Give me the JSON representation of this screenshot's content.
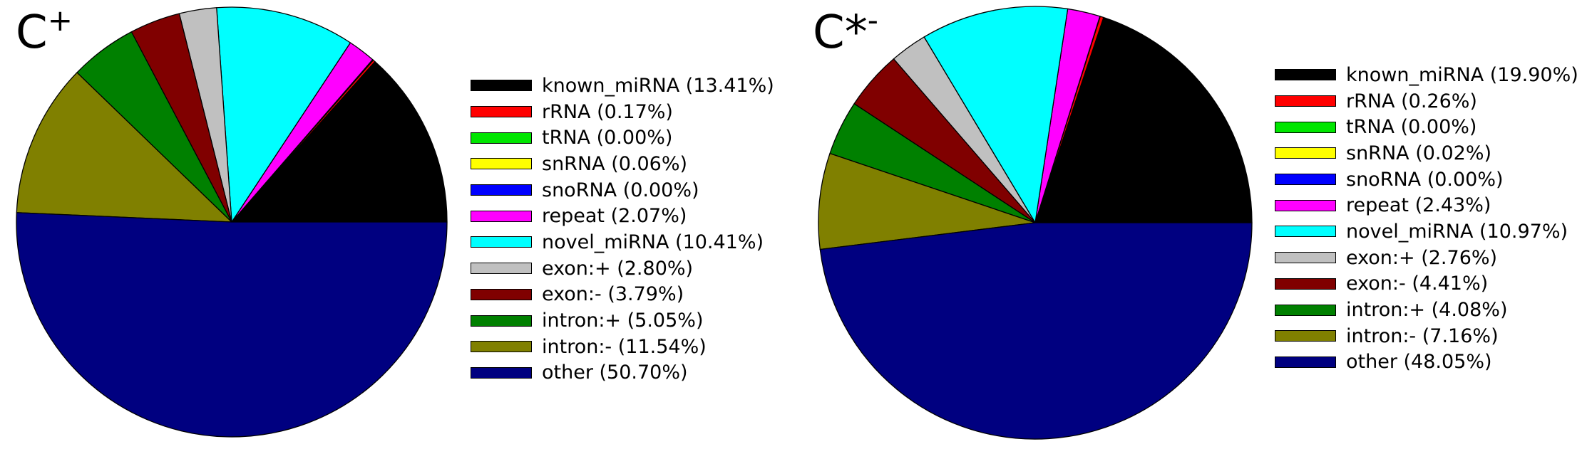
{
  "chart_data": [
    {
      "type": "pie",
      "title": "C+",
      "title_base": "C",
      "title_sup": "+",
      "legend_position": "right",
      "slices": [
        {
          "label": "known_miRNA",
          "value": 13.41,
          "legend": "known_miRNA (13.41%)",
          "color": "#000000"
        },
        {
          "label": "rRNA",
          "value": 0.17,
          "legend": "rRNA (0.17%)",
          "color": "#ff0000"
        },
        {
          "label": "tRNA",
          "value": 0.0,
          "legend": "tRNA (0.00%)",
          "color": "#00e600"
        },
        {
          "label": "snRNA",
          "value": 0.06,
          "legend": "snRNA (0.06%)",
          "color": "#ffff00"
        },
        {
          "label": "snoRNA",
          "value": 0.0,
          "legend": "snoRNA (0.00%)",
          "color": "#0000ff"
        },
        {
          "label": "repeat",
          "value": 2.07,
          "legend": "repeat (2.07%)",
          "color": "#ff00ff"
        },
        {
          "label": "novel_miRNA",
          "value": 10.41,
          "legend": "novel_miRNA (10.41%)",
          "color": "#00ffff"
        },
        {
          "label": "exon:+",
          "value": 2.8,
          "legend": "exon:+ (2.80%)",
          "color": "#c0c0c0"
        },
        {
          "label": "exon:-",
          "value": 3.79,
          "legend": "exon:- (3.79%)",
          "color": "#800000"
        },
        {
          "label": "intron:+",
          "value": 5.05,
          "legend": "intron:+ (5.05%)",
          "color": "#008000"
        },
        {
          "label": "intron:-",
          "value": 11.54,
          "legend": "intron:- (11.54%)",
          "color": "#808000"
        },
        {
          "label": "other",
          "value": 50.7,
          "legend": "other (50.70%)",
          "color": "#000080"
        }
      ]
    },
    {
      "type": "pie",
      "title": "C*-",
      "title_base": "C*",
      "title_sup": "-",
      "legend_position": "right",
      "slices": [
        {
          "label": "known_miRNA",
          "value": 19.9,
          "legend": "known_miRNA (19.90%)",
          "color": "#000000"
        },
        {
          "label": "rRNA",
          "value": 0.26,
          "legend": "rRNA (0.26%)",
          "color": "#ff0000"
        },
        {
          "label": "tRNA",
          "value": 0.0,
          "legend": "tRNA (0.00%)",
          "color": "#00e600"
        },
        {
          "label": "snRNA",
          "value": 0.02,
          "legend": "snRNA (0.02%)",
          "color": "#ffff00"
        },
        {
          "label": "snoRNA",
          "value": 0.0,
          "legend": "snoRNA (0.00%)",
          "color": "#0000ff"
        },
        {
          "label": "repeat",
          "value": 2.43,
          "legend": "repeat (2.43%)",
          "color": "#ff00ff"
        },
        {
          "label": "novel_miRNA",
          "value": 10.97,
          "legend": "novel_miRNA (10.97%)",
          "color": "#00ffff"
        },
        {
          "label": "exon:+",
          "value": 2.76,
          "legend": "exon:+ (2.76%)",
          "color": "#c0c0c0"
        },
        {
          "label": "exon:-",
          "value": 4.41,
          "legend": "exon:- (4.41%)",
          "color": "#800000"
        },
        {
          "label": "intron:+",
          "value": 4.08,
          "legend": "intron:+ (4.08%)",
          "color": "#008000"
        },
        {
          "label": "intron:-",
          "value": 7.16,
          "legend": "intron:- (7.16%)",
          "color": "#808000"
        },
        {
          "label": "other",
          "value": 48.05,
          "legend": "other (48.05%)",
          "color": "#000080"
        }
      ]
    }
  ]
}
